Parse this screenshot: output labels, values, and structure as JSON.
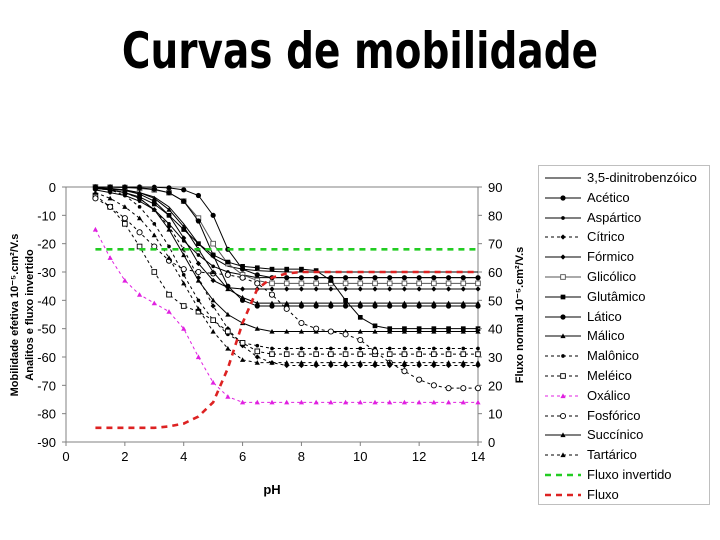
{
  "title": "Curvas de mobilidade",
  "chart_data": {
    "type": "line",
    "xlabel": "pH",
    "ylabel_left": "Mobilidade efetiva 10⁻⁵.cm²/V.s",
    "ylabel_left_sub": "Analitos e fluxo invertido",
    "ylabel_right": "Fluxo normal 10⁻⁵.cm²/V.s",
    "xlim": [
      0,
      14
    ],
    "ylim_left": [
      -90,
      0
    ],
    "ylim_right": [
      0,
      90
    ],
    "xticks": [
      "0",
      "2",
      "4",
      "6",
      "8",
      "10",
      "12",
      "14"
    ],
    "yticks_left": [
      "0",
      "-10",
      "-20",
      "-30",
      "-40",
      "-50",
      "-60",
      "-70",
      "-80",
      "-90"
    ],
    "yticks_right": [
      "90",
      "80",
      "70",
      "60",
      "50",
      "40",
      "30",
      "20",
      "10",
      "0"
    ],
    "legend_position": "right",
    "x": [
      1,
      1.5,
      2,
      2.5,
      3,
      3.5,
      4,
      4.5,
      5,
      5.5,
      6,
      6.5,
      7,
      7.5,
      8,
      8.5,
      9,
      9.5,
      10,
      10.5,
      11,
      11.5,
      12,
      12.5,
      13,
      13.5,
      14
    ],
    "series": [
      {
        "name": "3,5-dinitrobenzóico",
        "color": "#000000",
        "dash": "solid",
        "marker": "none",
        "values": [
          -0.5,
          -0.8,
          -1.2,
          -2,
          -3.5,
          -7,
          -13,
          -20,
          -25,
          -28,
          -29,
          -29.5,
          -29.8,
          -30,
          -30,
          -30,
          -30,
          -30,
          -30,
          -30,
          -30,
          -30,
          -30,
          -30,
          -30,
          -30,
          -30
        ]
      },
      {
        "name": "Acético",
        "color": "#000000",
        "dash": "solid",
        "marker": "circle",
        "values": [
          0,
          0,
          0,
          0,
          -0.1,
          -0.3,
          -1,
          -3,
          -10,
          -22,
          -29,
          -31,
          -32,
          -32,
          -32,
          -32,
          -32,
          -32,
          -32,
          -32,
          -32,
          -32,
          -32,
          -32,
          -32,
          -32,
          -32
        ]
      },
      {
        "name": "Aspártico",
        "color": "#000000",
        "dash": "solid",
        "marker": "dot",
        "values": [
          -1,
          -2,
          -3,
          -5,
          -8,
          -13,
          -19,
          -24,
          -28,
          -30,
          -31,
          -32,
          -32,
          -32,
          -32,
          -32,
          -32,
          -32,
          -32,
          -32,
          -32,
          -32,
          -32,
          -32,
          -32,
          -32,
          -32
        ]
      },
      {
        "name": "Cítrico",
        "color": "#000000",
        "dash": "dashed",
        "marker": "diamond",
        "values": [
          -0.5,
          -1,
          -2,
          -4,
          -8,
          -14,
          -22,
          -32,
          -42,
          -50,
          -56,
          -60,
          -62,
          -63,
          -63,
          -63,
          -63,
          -63,
          -63,
          -63,
          -63,
          -63,
          -63,
          -63,
          -63,
          -63,
          -63
        ]
      },
      {
        "name": "Fórmico",
        "color": "#000000",
        "dash": "solid",
        "marker": "diamond",
        "values": [
          -0.3,
          -0.6,
          -1.2,
          -2.5,
          -5,
          -10,
          -18,
          -27,
          -33,
          -35.5,
          -36,
          -36,
          -36,
          -36,
          -36,
          -36,
          -36,
          -36,
          -36,
          -36,
          -36,
          -36,
          -36,
          -36,
          -36,
          -36,
          -36
        ]
      },
      {
        "name": "Glicólico",
        "color": "#555555",
        "dash": "solid",
        "marker": "square",
        "values": [
          0,
          -0.1,
          -0.2,
          -0.5,
          -1,
          -2,
          -5,
          -11,
          -20,
          -27,
          -31,
          -33,
          -34,
          -34,
          -34,
          -34,
          -34,
          -34,
          -34,
          -34,
          -34,
          -34,
          -34,
          -34,
          -34,
          -34,
          -34
        ]
      },
      {
        "name": "Glutâmico",
        "color": "#000000",
        "dash": "solid",
        "marker": "square-filled",
        "values": [
          -0.5,
          -1,
          -2,
          -3.5,
          -6,
          -10,
          -15,
          -20,
          -24,
          -26.5,
          -28,
          -28.5,
          -29,
          -29,
          -29,
          -29.5,
          -33,
          -40,
          -46,
          -49,
          -50,
          -50,
          -50,
          -50,
          -50,
          -50,
          -50
        ]
      },
      {
        "name": "Lático",
        "color": "#000000",
        "dash": "solid",
        "marker": "circle",
        "values": [
          0,
          0,
          -0.1,
          -0.3,
          -0.8,
          -2,
          -5,
          -12,
          -24,
          -35,
          -40,
          -42,
          -42,
          -42,
          -42,
          -42,
          -42,
          -42,
          -42,
          -42,
          -42,
          -42,
          -42,
          -42,
          -42,
          -42,
          -42
        ]
      },
      {
        "name": "Málico",
        "color": "#000000",
        "dash": "solid",
        "marker": "triangle",
        "values": [
          -0.5,
          -1,
          -2,
          -4,
          -8,
          -15,
          -24,
          -33,
          -40,
          -45,
          -48,
          -50,
          -51,
          -51,
          -51,
          -51,
          -51,
          -51,
          -51,
          -51,
          -51,
          -51,
          -51,
          -51,
          -51,
          -51,
          -51
        ]
      },
      {
        "name": "Malônico",
        "color": "#000000",
        "dash": "dashed",
        "marker": "dot",
        "values": [
          -0.3,
          -1,
          -3,
          -7,
          -13,
          -21,
          -31,
          -40,
          -47,
          -52,
          -55,
          -56,
          -57,
          -57,
          -57,
          -57,
          -57,
          -57,
          -57,
          -57,
          -57,
          -57,
          -57,
          -57,
          -57,
          -57,
          -57
        ]
      },
      {
        "name": "Meléico",
        "color": "#000000",
        "dash": "dashed",
        "marker": "square",
        "values": [
          -3,
          -7,
          -13,
          -21,
          -30,
          -38,
          -42,
          -44,
          -47,
          -51,
          -55,
          -58,
          -59,
          -59,
          -59,
          -59,
          -59,
          -59,
          -59,
          -59,
          -59,
          -59,
          -59,
          -59,
          -59,
          -59,
          -59
        ]
      },
      {
        "name": "Oxálico",
        "color": "#e020e0",
        "dash": "dashed",
        "marker": "triangle",
        "values": [
          -15,
          -25,
          -33,
          -38,
          -41,
          -44,
          -50,
          -60,
          -69,
          -74,
          -76,
          -76,
          -76,
          -76,
          -76,
          -76,
          -76,
          -76,
          -76,
          -76,
          -76,
          -76,
          -76,
          -76,
          -76,
          -76,
          -76
        ]
      },
      {
        "name": "Fosfórico",
        "color": "#000000",
        "dash": "dashed",
        "marker": "circle-open",
        "values": [
          -4,
          -7,
          -11,
          -16,
          -21,
          -26,
          -29,
          -30,
          -30.5,
          -31,
          -32,
          -34,
          -38,
          -43,
          -48,
          -50,
          -51,
          -52,
          -54,
          -58,
          -62,
          -65,
          -68,
          -70,
          -71,
          -71,
          -71
        ]
      },
      {
        "name": "Succínico",
        "color": "#000000",
        "dash": "solid",
        "marker": "triangle",
        "values": [
          -0.2,
          -0.5,
          -1,
          -2,
          -4,
          -8,
          -14,
          -22,
          -30,
          -36,
          -39,
          -41,
          -41,
          -41,
          -41,
          -41,
          -41,
          -41,
          -41,
          -41,
          -41,
          -41,
          -41,
          -41,
          -41,
          -41,
          -41
        ]
      },
      {
        "name": "Tartárico",
        "color": "#000000",
        "dash": "dashed",
        "marker": "triangle",
        "values": [
          -2,
          -4,
          -7,
          -11,
          -17,
          -25,
          -34,
          -43,
          -51,
          -57,
          -61,
          -62,
          -62,
          -62,
          -62,
          -62,
          -62,
          -62,
          -62,
          -62,
          -62,
          -62,
          -62,
          -62,
          -62,
          -62,
          -62
        ]
      },
      {
        "name": "Fluxo invertido",
        "color": "#22cc22",
        "dash": "dashed-thick",
        "marker": "none",
        "axis": "left",
        "values": [
          -22,
          -22,
          -22,
          -22,
          -22,
          -22,
          -22,
          -22,
          -22,
          -22,
          -22,
          -22,
          -22,
          -22,
          -22,
          -22,
          -22,
          -22,
          -22,
          -22,
          -22,
          -22,
          -22,
          -22,
          -22,
          -22,
          -22
        ]
      },
      {
        "name": "Fluxo",
        "color": "#dd2222",
        "dash": "dashed-thick",
        "marker": "none",
        "axis": "right",
        "values": [
          5,
          5,
          5,
          5,
          5,
          5.5,
          6.5,
          9,
          14,
          26,
          42,
          54,
          58,
          59.5,
          60,
          60,
          60,
          60,
          60,
          60,
          60,
          60,
          60,
          60,
          60,
          60,
          60
        ]
      }
    ]
  }
}
